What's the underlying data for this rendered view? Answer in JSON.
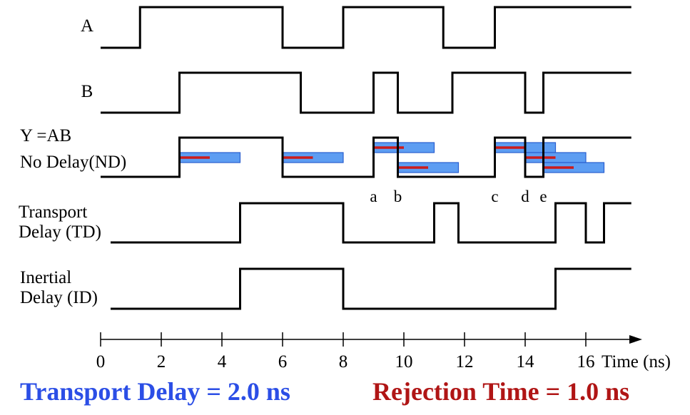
{
  "signals": [
    {
      "label_lines": [
        "A"
      ],
      "edges": [
        1.3,
        6.0,
        8.0,
        11.3,
        13.0
      ],
      "initial": 0,
      "end": 17.5
    },
    {
      "label_lines": [
        "B"
      ],
      "edges": [
        2.6,
        6.6,
        9.0,
        9.8,
        11.6,
        14.0,
        14.6
      ],
      "initial": 0,
      "end": 17.5
    },
    {
      "label_lines": [
        "Y =AB",
        "No Delay(ND)"
      ],
      "edges": [
        2.6,
        6.0,
        9.0,
        9.8,
        13.0,
        14.0,
        14.6
      ],
      "initial": 0,
      "end": 17.5
    },
    {
      "label_lines": [
        "Transport",
        "Delay (TD)"
      ],
      "edges": [
        4.6,
        8.0,
        11.0,
        11.8,
        15.0,
        16.0,
        16.6
      ],
      "initial": 0,
      "end": 17.5
    },
    {
      "label_lines": [
        "Inertial",
        "Delay (ID)"
      ],
      "edges": [
        4.6,
        8.0,
        15.0
      ],
      "initial": 0,
      "end": 17.5
    }
  ],
  "delay_bars": [
    {
      "start": 2.6,
      "row": 1
    },
    {
      "start": 6.0,
      "row": 1
    },
    {
      "start": 9.0,
      "row": 0
    },
    {
      "start": 9.8,
      "row": 2
    },
    {
      "start": 13.0,
      "row": 0
    },
    {
      "start": 14.0,
      "row": 1
    },
    {
      "start": 14.6,
      "row": 2
    }
  ],
  "event_labels": [
    {
      "text": "a",
      "t": 9.0
    },
    {
      "text": "b",
      "t": 9.8
    },
    {
      "text": "c",
      "t": 13.0
    },
    {
      "text": "d",
      "t": 14.0
    },
    {
      "text": "e",
      "t": 14.6
    }
  ],
  "axis": {
    "ticks": [
      "0",
      "2",
      "4",
      "6",
      "8",
      "10",
      "12",
      "14",
      "16"
    ],
    "tick_values": [
      0,
      2,
      4,
      6,
      8,
      10,
      12,
      14,
      16
    ],
    "label": "Time (ns)"
  },
  "transport_delay_ns": 2.0,
  "rejection_time_ns": 1.0,
  "footer": {
    "transport": "Transport Delay = 2.0 ns",
    "rejection": "Rejection Time = 1.0 ns"
  },
  "colors": {
    "transport": "#2b4ee6",
    "rejection": "#b01515",
    "bar_fill": "#5d9df2",
    "rejection_line": "#cc1b1b"
  }
}
